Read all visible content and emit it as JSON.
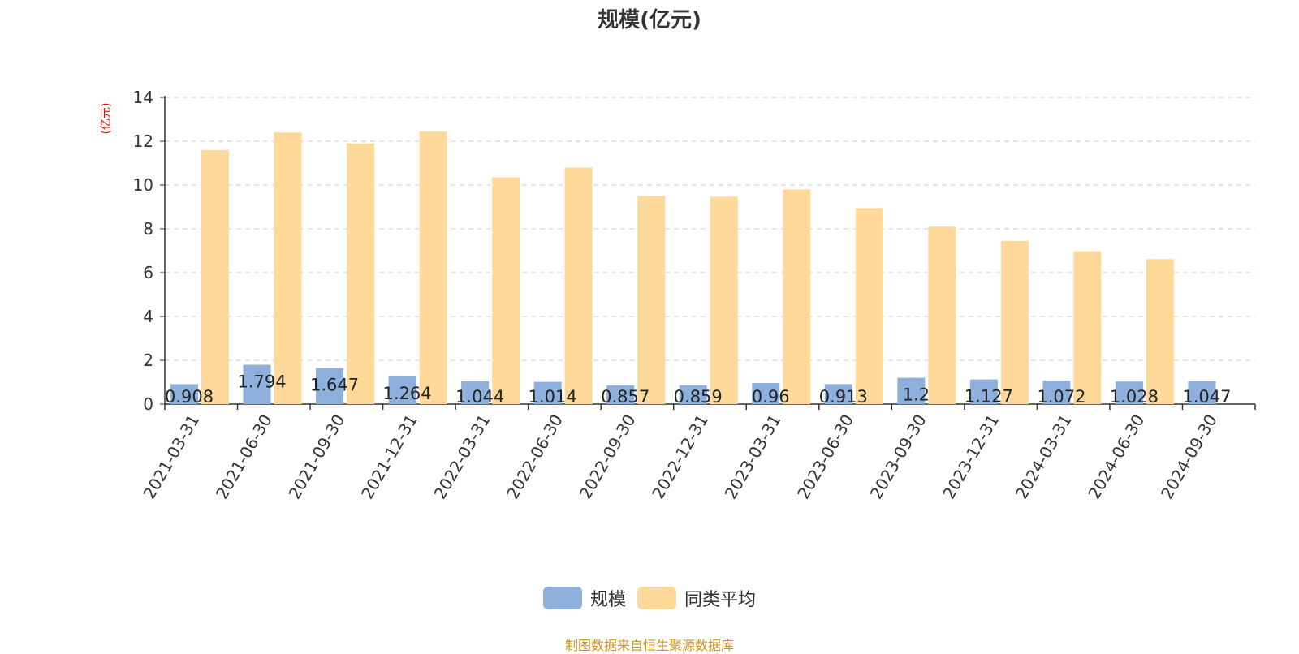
{
  "chart_data": {
    "type": "bar",
    "title": "规模(亿元)",
    "ylabel": "(亿元)",
    "xlabel": "",
    "ylim": [
      0,
      14
    ],
    "yticks": [
      0,
      2,
      4,
      6,
      8,
      10,
      12,
      14
    ],
    "grid": true,
    "legend_position": "bottom",
    "categories": [
      "2021-03-31",
      "2021-06-30",
      "2021-09-30",
      "2021-12-31",
      "2022-03-31",
      "2022-06-30",
      "2022-09-30",
      "2022-12-31",
      "2023-03-31",
      "2023-06-30",
      "2023-09-30",
      "2023-12-31",
      "2024-03-31",
      "2024-06-30",
      "2024-09-30"
    ],
    "series": [
      {
        "name": "规模",
        "color": "#8eb0dc",
        "values": [
          0.908,
          1.794,
          1.647,
          1.264,
          1.044,
          1.014,
          0.857,
          0.859,
          0.96,
          0.913,
          1.2,
          1.127,
          1.072,
          1.028,
          1.047
        ],
        "labels": [
          "0.908",
          "1.794",
          "1.647",
          "1.264",
          "1.044",
          "1.014",
          "0.857",
          "0.859",
          "0.96",
          "0.913",
          "1.2",
          "1.127",
          "1.072",
          "1.028",
          "1.047"
        ]
      },
      {
        "name": "同类平均",
        "color": "#ffd99a",
        "values": [
          11.6,
          12.4,
          11.9,
          12.45,
          10.35,
          10.8,
          9.5,
          9.47,
          9.8,
          8.95,
          8.1,
          7.45,
          6.98,
          6.62,
          null
        ]
      }
    ]
  },
  "source": "制图数据来自恒生聚源数据库"
}
